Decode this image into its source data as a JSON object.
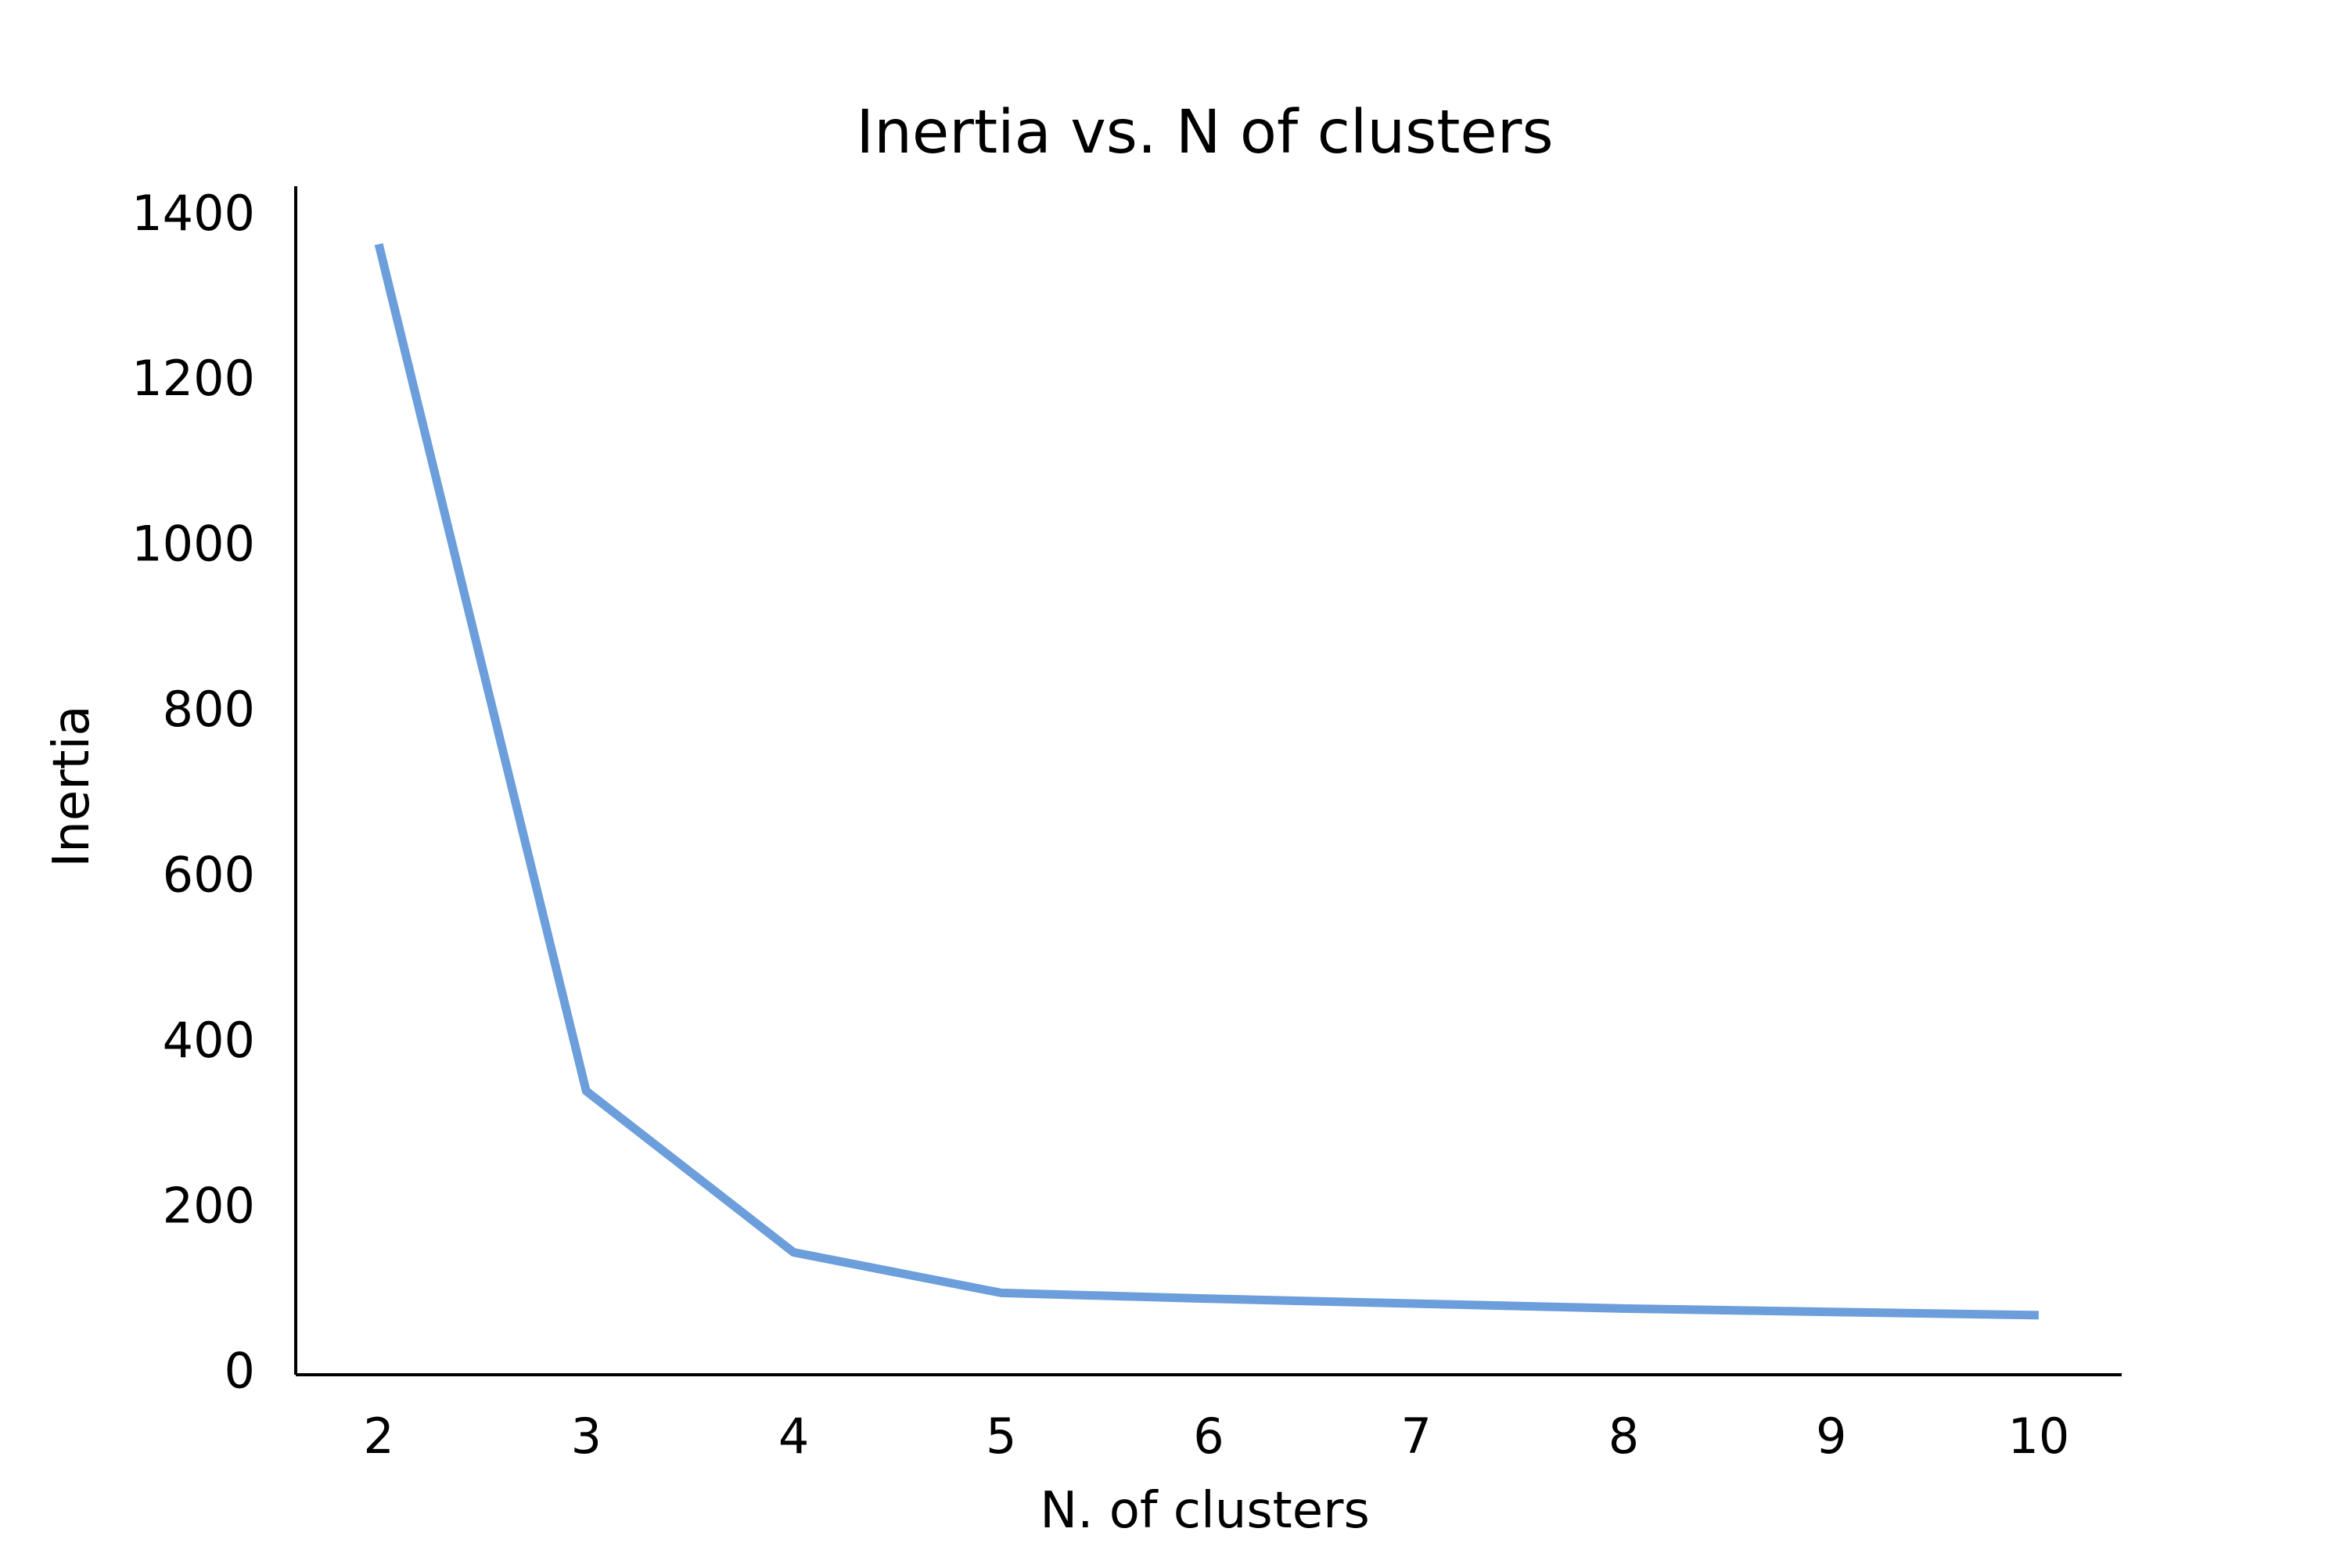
{
  "chart_data": {
    "type": "line",
    "title": "Inertia vs. N of clusters",
    "xlabel": "N. of clusters",
    "ylabel": "Inertia",
    "x": [
      2,
      3,
      4,
      5,
      6,
      7,
      8,
      9,
      10
    ],
    "series": [
      {
        "values": [
          1362,
          338,
          143,
          94,
          87,
          81,
          75,
          71,
          67
        ],
        "color": "#6b9edb"
      }
    ],
    "xlim": [
      1.6,
      10.4
    ],
    "ylim": [
      -5,
      1432
    ],
    "xticks": [
      "2",
      "3",
      "4",
      "5",
      "6",
      "7",
      "8",
      "9",
      "10"
    ],
    "yticks": [
      "0",
      "200",
      "400",
      "600",
      "800",
      "1000",
      "1200",
      "1400"
    ],
    "grid": false,
    "legend": "none",
    "spines": [
      "left",
      "bottom"
    ]
  }
}
